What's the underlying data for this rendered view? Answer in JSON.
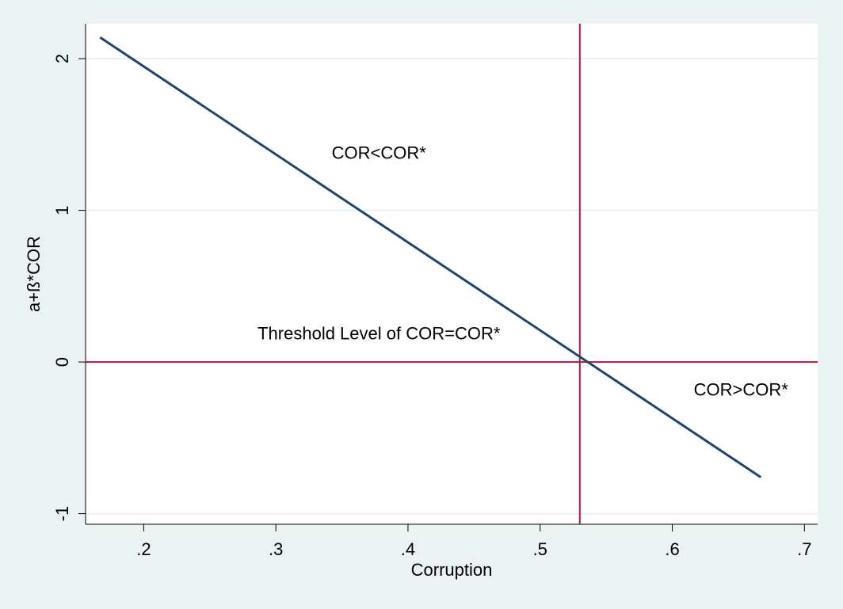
{
  "chart_data": {
    "type": "line",
    "xlabel": "Corruption",
    "ylabel": "a+ß*COR",
    "series": [
      {
        "name": "a+ß*COR",
        "color": "#1a476f",
        "x": [
          0.167,
          0.667
        ],
        "values": [
          2.14,
          -0.76
        ]
      }
    ],
    "xlim": [
      0.156,
      0.71
    ],
    "xticks": [
      {
        "value": 0.2,
        "label": ".2"
      },
      {
        "value": 0.3,
        "label": ".3"
      },
      {
        "value": 0.4,
        "label": ".4"
      },
      {
        "value": 0.5,
        "label": ".5"
      },
      {
        "value": 0.6,
        "label": ".6"
      },
      {
        "value": 0.7,
        "label": ".7"
      }
    ],
    "ylim": [
      -1.07,
      2.23
    ],
    "yticks": [
      -1,
      0,
      1,
      2
    ],
    "grid": true,
    "xline": {
      "value": 0.53,
      "color": "#b0173b"
    },
    "yline": {
      "value": 0,
      "color": "#b0173b"
    },
    "annotations": [
      {
        "text": "COR<COR*",
        "x": 0.378,
        "y": 1.37
      },
      {
        "text": "Threshold Level of COR=COR*",
        "x": 0.378,
        "y": 0.18
      },
      {
        "text": "COR>COR*",
        "x": 0.652,
        "y": -0.19
      }
    ]
  }
}
